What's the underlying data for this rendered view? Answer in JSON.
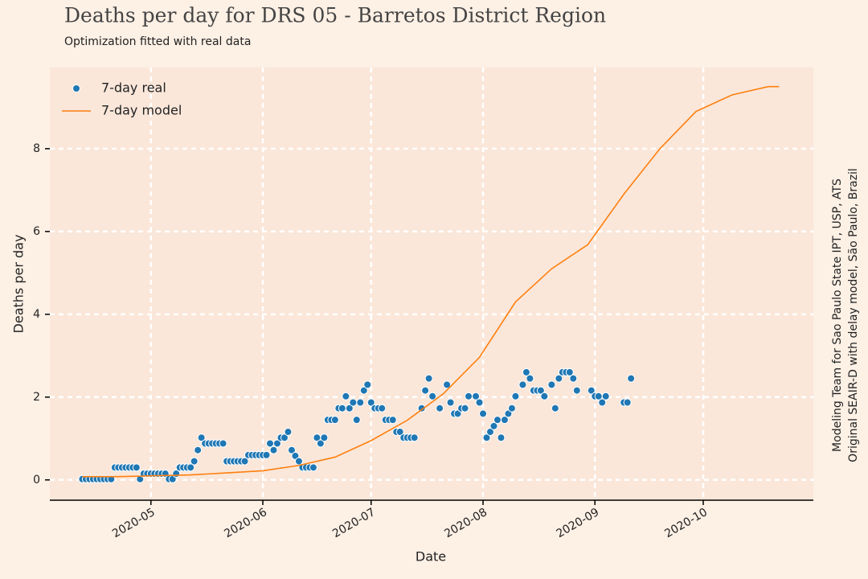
{
  "chart_data": {
    "type": "scatter-line",
    "title": "Deaths per day for DRS 05 - Barretos District Region",
    "subtitle": "Optimization fitted with real data",
    "x_label": "Date",
    "y_label": "Deaths per day",
    "side_note": [
      "Modeling Team for Sao Paulo State IPT, USP, ATS",
      "Original SEAIR-D with delay model, São Paulo, Brazil"
    ],
    "xlim": [
      94,
      305.5
    ],
    "ylim": [
      -0.49,
      9.96
    ],
    "xticks": [
      {
        "value": 122,
        "label": "2020-05"
      },
      {
        "value": 153,
        "label": "2020-06"
      },
      {
        "value": 183,
        "label": "2020-07"
      },
      {
        "value": 214,
        "label": "2020-08"
      },
      {
        "value": 245,
        "label": "2020-09"
      },
      {
        "value": 275,
        "label": "2020-10"
      }
    ],
    "yticks": [
      0,
      2,
      4,
      6,
      8
    ],
    "grid": true,
    "legend": "upper left",
    "series": [
      {
        "name": "7-day real",
        "kind": "scatter",
        "color": "#1f77b4",
        "x": [
          103,
          104,
          105,
          106,
          107,
          108,
          109,
          110,
          111,
          112,
          113,
          114,
          115,
          116,
          117,
          118,
          119,
          120,
          121,
          122,
          123,
          124,
          125,
          126,
          127,
          128,
          129,
          130,
          131,
          132,
          133,
          134,
          135,
          136,
          137,
          138,
          139,
          140,
          141,
          142,
          143,
          144,
          145,
          146,
          147,
          148,
          149,
          150,
          151,
          152,
          153,
          154,
          155,
          156,
          157,
          158,
          159,
          160,
          161,
          162,
          163,
          164,
          165,
          166,
          167,
          168,
          169,
          170,
          171,
          172,
          173,
          174,
          175,
          176,
          177,
          178,
          179,
          180,
          181,
          182,
          183,
          184,
          185,
          186,
          187,
          188,
          189,
          190,
          191,
          192,
          193,
          194,
          195,
          197,
          198,
          199,
          200,
          202,
          204,
          205,
          206,
          207,
          208,
          209,
          210,
          212,
          213,
          214,
          215,
          216,
          217,
          218,
          219,
          220,
          221,
          222,
          223,
          225,
          226,
          227,
          228,
          229,
          230,
          231,
          233,
          234,
          235,
          236,
          237,
          238,
          239,
          240,
          244,
          245,
          246,
          247,
          248,
          253,
          254,
          255
        ],
        "values": [
          0.02,
          0.02,
          0.02,
          0.02,
          0.02,
          0.02,
          0.02,
          0.02,
          0.02,
          0.3,
          0.3,
          0.3,
          0.3,
          0.3,
          0.3,
          0.3,
          0.02,
          0.15,
          0.15,
          0.15,
          0.15,
          0.15,
          0.15,
          0.15,
          0.02,
          0.02,
          0.15,
          0.3,
          0.3,
          0.3,
          0.3,
          0.45,
          0.72,
          1.02,
          0.88,
          0.88,
          0.88,
          0.88,
          0.88,
          0.88,
          0.45,
          0.45,
          0.45,
          0.45,
          0.45,
          0.45,
          0.6,
          0.6,
          0.6,
          0.6,
          0.6,
          0.6,
          0.88,
          0.72,
          0.88,
          1.02,
          1.02,
          1.16,
          0.72,
          0.58,
          0.45,
          0.3,
          0.3,
          0.3,
          0.3,
          1.02,
          0.88,
          1.02,
          1.45,
          1.45,
          1.45,
          1.73,
          1.73,
          2.02,
          1.73,
          1.87,
          1.45,
          1.87,
          2.16,
          2.3,
          1.87,
          1.73,
          1.73,
          1.73,
          1.45,
          1.45,
          1.45,
          1.16,
          1.16,
          1.02,
          1.02,
          1.02,
          1.02,
          1.73,
          2.16,
          2.45,
          2.02,
          1.73,
          2.3,
          1.87,
          1.6,
          1.6,
          1.73,
          1.73,
          2.02,
          2.02,
          1.87,
          1.6,
          1.02,
          1.16,
          1.3,
          1.45,
          1.02,
          1.45,
          1.6,
          1.73,
          2.02,
          2.3,
          2.6,
          2.45,
          2.16,
          2.16,
          2.16,
          2.02,
          2.3,
          1.73,
          2.45,
          2.6,
          2.6,
          2.6,
          2.45,
          2.16,
          2.16,
          2.02,
          2.02,
          1.87,
          2.02,
          1.87,
          1.87,
          2.45
        ]
      },
      {
        "name": "7-day model",
        "kind": "line",
        "color": "#ff7f0e",
        "x": [
          103,
          113,
          123,
          133,
          143,
          153,
          163,
          173,
          183,
          193,
          203,
          213,
          223,
          233,
          243,
          253,
          263,
          273,
          283,
          293,
          296
        ],
        "values": [
          0.08,
          0.08,
          0.1,
          0.12,
          0.17,
          0.22,
          0.35,
          0.55,
          0.95,
          1.44,
          2.08,
          2.96,
          4.3,
          5.1,
          5.68,
          6.9,
          8.0,
          8.9,
          9.3,
          9.5,
          9.5
        ]
      }
    ]
  }
}
